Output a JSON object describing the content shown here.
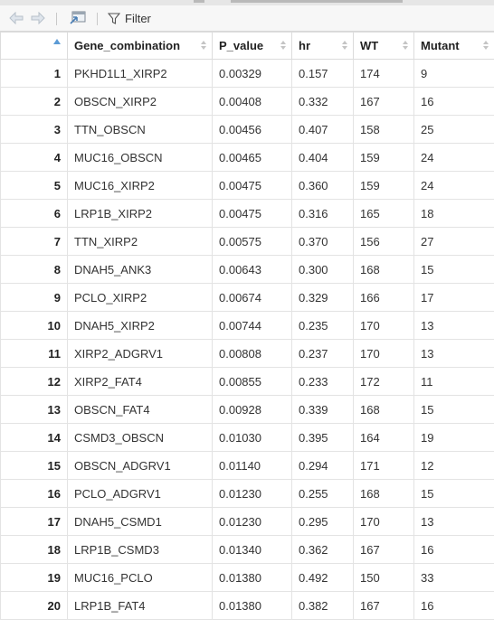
{
  "toolbar": {
    "filter_label": "Filter",
    "icons": [
      "back-arrow-icon",
      "forward-arrow-icon",
      "open-in-new-window-icon",
      "filter-icon"
    ]
  },
  "colors": {
    "sort_indicator": "#5b9bd5",
    "grid_border": "#e3e3e3",
    "toolbar_bg": "#f7f7f7"
  },
  "table": {
    "columns": [
      "",
      "Gene_combination",
      "P_value",
      "hr",
      "WT",
      "Mutant"
    ],
    "sorted_column": "row-number",
    "rows": [
      [
        "1",
        "PKHD1L1_XIRP2",
        "0.00329",
        "0.157",
        "174",
        "9"
      ],
      [
        "2",
        "OBSCN_XIRP2",
        "0.00408",
        "0.332",
        "167",
        "16"
      ],
      [
        "3",
        "TTN_OBSCN",
        "0.00456",
        "0.407",
        "158",
        "25"
      ],
      [
        "4",
        "MUC16_OBSCN",
        "0.00465",
        "0.404",
        "159",
        "24"
      ],
      [
        "5",
        "MUC16_XIRP2",
        "0.00475",
        "0.360",
        "159",
        "24"
      ],
      [
        "6",
        "LRP1B_XIRP2",
        "0.00475",
        "0.316",
        "165",
        "18"
      ],
      [
        "7",
        "TTN_XIRP2",
        "0.00575",
        "0.370",
        "156",
        "27"
      ],
      [
        "8",
        "DNAH5_ANK3",
        "0.00643",
        "0.300",
        "168",
        "15"
      ],
      [
        "9",
        "PCLO_XIRP2",
        "0.00674",
        "0.329",
        "166",
        "17"
      ],
      [
        "10",
        "DNAH5_XIRP2",
        "0.00744",
        "0.235",
        "170",
        "13"
      ],
      [
        "11",
        "XIRP2_ADGRV1",
        "0.00808",
        "0.237",
        "170",
        "13"
      ],
      [
        "12",
        "XIRP2_FAT4",
        "0.00855",
        "0.233",
        "172",
        "11"
      ],
      [
        "13",
        "OBSCN_FAT4",
        "0.00928",
        "0.339",
        "168",
        "15"
      ],
      [
        "14",
        "CSMD3_OBSCN",
        "0.01030",
        "0.395",
        "164",
        "19"
      ],
      [
        "15",
        "OBSCN_ADGRV1",
        "0.01140",
        "0.294",
        "171",
        "12"
      ],
      [
        "16",
        "PCLO_ADGRV1",
        "0.01230",
        "0.255",
        "168",
        "15"
      ],
      [
        "17",
        "DNAH5_CSMD1",
        "0.01230",
        "0.295",
        "170",
        "13"
      ],
      [
        "18",
        "LRP1B_CSMD3",
        "0.01340",
        "0.362",
        "167",
        "16"
      ],
      [
        "19",
        "MUC16_PCLO",
        "0.01380",
        "0.492",
        "150",
        "33"
      ],
      [
        "20",
        "LRP1B_FAT4",
        "0.01380",
        "0.382",
        "167",
        "16"
      ]
    ]
  }
}
